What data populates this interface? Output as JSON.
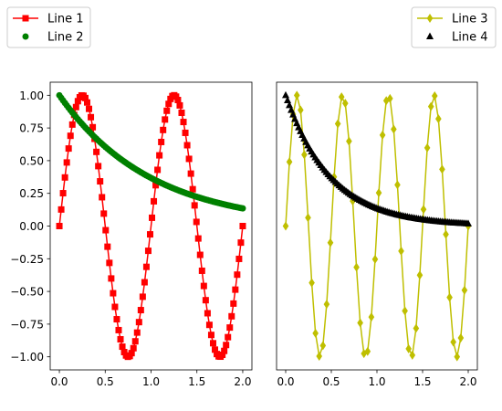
{
  "chart_data": [
    {
      "type": "line",
      "x_range": [
        0,
        2
      ],
      "xlim": [
        -0.1,
        2.1
      ],
      "ylim": [
        -1.1,
        1.1
      ],
      "x_ticks": [
        "0.0",
        "0.5",
        "1.0",
        "1.5",
        "2.0"
      ],
      "y_ticks": [
        "1.00",
        "0.75",
        "0.50",
        "0.25",
        "0.00",
        "−0.25",
        "−0.50",
        "−0.75",
        "−1.00"
      ],
      "grid": false,
      "legend": {
        "placement": "above-left"
      },
      "series": [
        {
          "name": "Line 1",
          "style": "line",
          "marker": "square",
          "color": "#ff0000",
          "function": "sin(2*pi*x)",
          "n_points": 100
        },
        {
          "name": "Line 2",
          "style": "scatter",
          "marker": "circle",
          "color": "#008000",
          "function": "exp(-x)",
          "n_points": 100
        }
      ]
    },
    {
      "type": "line",
      "x_range": [
        0,
        2
      ],
      "xlim": [
        -0.1,
        2.1
      ],
      "ylim": [
        -1.1,
        1.1
      ],
      "x_ticks": [
        "0.0",
        "0.5",
        "1.0",
        "1.5",
        "2.0"
      ],
      "grid": false,
      "legend": {
        "placement": "above-right"
      },
      "series": [
        {
          "name": "Line 3",
          "style": "line",
          "marker": "thin_diamond",
          "color": "#bfbf00",
          "function": "sin(4*pi*x)",
          "n_points": 50
        },
        {
          "name": "Line 4",
          "style": "scatter",
          "marker": "triangle",
          "color": "#000000",
          "function": "exp(-2*x)",
          "n_points": 100
        }
      ]
    }
  ]
}
